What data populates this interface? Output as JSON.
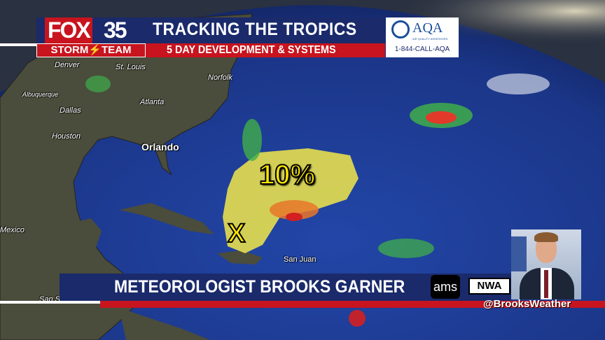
{
  "header": {
    "station_logo": "FOX 35",
    "station_logo_fox": "FOX",
    "station_logo_number": "35",
    "team_label": "STORM⚡TEAM",
    "title": "TRACKING THE TROPICS",
    "subtitle": "5 DAY DEVELOPMENT & SYSTEMS"
  },
  "sponsor": {
    "name": "AQA",
    "tagline": "AIR QUALITY ASSESSORS",
    "phone": "1-844-CALL-AQA"
  },
  "map": {
    "cities": [
      {
        "name": "Denver"
      },
      {
        "name": "St. Louis"
      },
      {
        "name": "Norfolk"
      },
      {
        "name": "Albuquerque"
      },
      {
        "name": "Dallas"
      },
      {
        "name": "Atlanta"
      },
      {
        "name": "Houston"
      },
      {
        "name": "Orlando"
      },
      {
        "name": "Mexico"
      },
      {
        "name": "San Juan"
      },
      {
        "name": "San S"
      }
    ],
    "development_chance": "10%",
    "disturbance_marker": "X",
    "colors": {
      "ocean": "#1d3a8c",
      "land": "#4a4c3c",
      "outlook_area": "#f2e84a"
    }
  },
  "lower_third": {
    "name": "METEOROLOGIST BROOKS GARNER",
    "ams_badge": "ams",
    "nwa_badge": "NWA",
    "social_handle": "@BrooksWeather"
  },
  "colors": {
    "brand_blue": "#1a2a6b",
    "brand_red": "#c8141e"
  }
}
